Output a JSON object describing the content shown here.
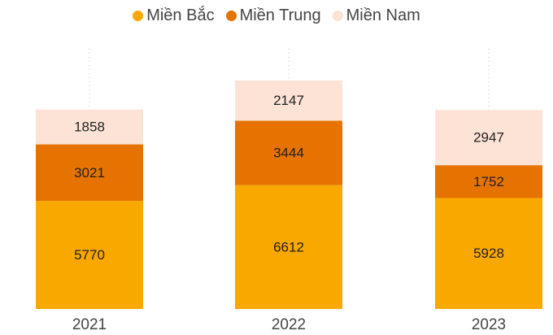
{
  "chart_data": {
    "type": "stacked-bar",
    "categories": [
      "2021",
      "2022",
      "2023"
    ],
    "series": [
      {
        "name": "Miền Bắc",
        "color": "#f9a800",
        "values": [
          5770,
          6612,
          5928
        ]
      },
      {
        "name": "Miền Trung",
        "color": "#e67300",
        "values": [
          3021,
          3444,
          1752
        ]
      },
      {
        "name": "Miền Nam",
        "color": "#fce3d6",
        "values": [
          1858,
          2147,
          2947
        ]
      }
    ]
  }
}
